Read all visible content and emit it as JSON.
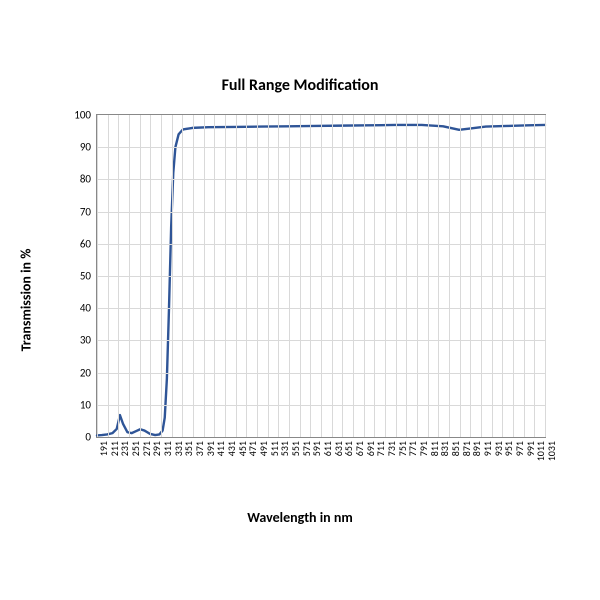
{
  "chart": {
    "type": "line",
    "title": "Full Range Modification",
    "title_fontsize": 16,
    "xlabel": "Wavelength in nm",
    "ylabel": "Transmission in %",
    "label_fontsize": 14,
    "background_color": "#ffffff",
    "grid_color": "#d9d9d9",
    "axis_color": "#888888",
    "line_color": "#2f5597",
    "line_width": 2.4,
    "ylim": [
      0,
      100
    ],
    "yticks": [
      0,
      10,
      20,
      30,
      40,
      50,
      60,
      70,
      80,
      90,
      100
    ],
    "xlim": [
      191,
      1031
    ],
    "xtick_step": 20,
    "xticks": [
      191,
      211,
      231,
      251,
      271,
      291,
      311,
      331,
      351,
      371,
      391,
      411,
      431,
      451,
      471,
      491,
      511,
      531,
      551,
      571,
      591,
      611,
      631,
      651,
      671,
      691,
      711,
      731,
      751,
      771,
      791,
      811,
      831,
      851,
      871,
      891,
      911,
      931,
      951,
      971,
      991,
      1011,
      1031
    ],
    "series": [
      {
        "x": 191,
        "y": 0.5
      },
      {
        "x": 200,
        "y": 0.6
      },
      {
        "x": 210,
        "y": 0.8
      },
      {
        "x": 220,
        "y": 1.2
      },
      {
        "x": 228,
        "y": 2.5
      },
      {
        "x": 234,
        "y": 6.8
      },
      {
        "x": 240,
        "y": 4.0
      },
      {
        "x": 248,
        "y": 1.5
      },
      {
        "x": 256,
        "y": 1.2
      },
      {
        "x": 264,
        "y": 1.8
      },
      {
        "x": 272,
        "y": 2.4
      },
      {
        "x": 280,
        "y": 2.0
      },
      {
        "x": 290,
        "y": 1.0
      },
      {
        "x": 300,
        "y": 0.6
      },
      {
        "x": 308,
        "y": 0.8
      },
      {
        "x": 314,
        "y": 2.0
      },
      {
        "x": 318,
        "y": 6.0
      },
      {
        "x": 322,
        "y": 18.0
      },
      {
        "x": 326,
        "y": 40.0
      },
      {
        "x": 330,
        "y": 65.0
      },
      {
        "x": 334,
        "y": 82.0
      },
      {
        "x": 338,
        "y": 90.0
      },
      {
        "x": 344,
        "y": 94.0
      },
      {
        "x": 352,
        "y": 95.5
      },
      {
        "x": 370,
        "y": 96.0
      },
      {
        "x": 400,
        "y": 96.2
      },
      {
        "x": 450,
        "y": 96.3
      },
      {
        "x": 500,
        "y": 96.4
      },
      {
        "x": 550,
        "y": 96.5
      },
      {
        "x": 600,
        "y": 96.6
      },
      {
        "x": 650,
        "y": 96.7
      },
      {
        "x": 700,
        "y": 96.8
      },
      {
        "x": 750,
        "y": 96.9
      },
      {
        "x": 800,
        "y": 96.9
      },
      {
        "x": 840,
        "y": 96.5
      },
      {
        "x": 870,
        "y": 95.4
      },
      {
        "x": 890,
        "y": 95.8
      },
      {
        "x": 920,
        "y": 96.4
      },
      {
        "x": 960,
        "y": 96.6
      },
      {
        "x": 1000,
        "y": 96.8
      },
      {
        "x": 1031,
        "y": 96.9
      }
    ]
  }
}
